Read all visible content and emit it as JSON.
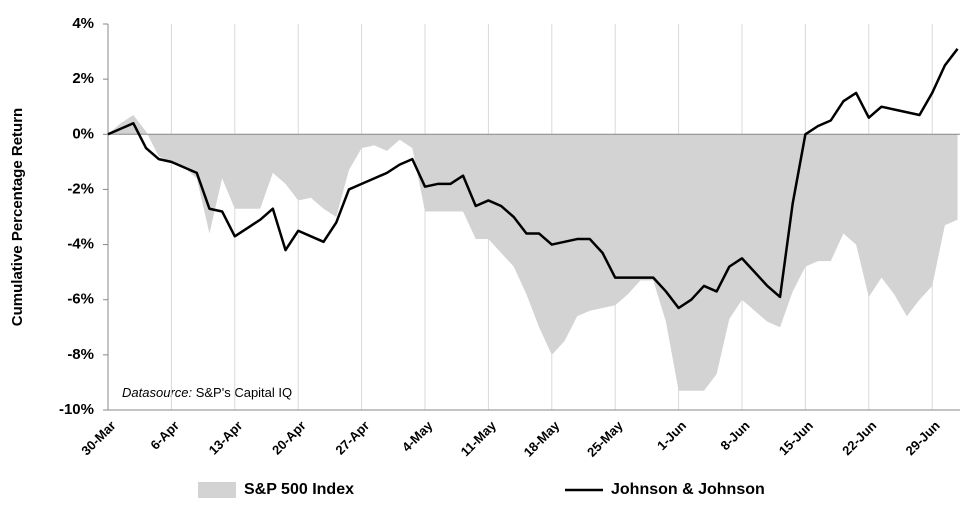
{
  "chart_data": {
    "type": "line",
    "y_label": "Cumulative Percentage Return",
    "annotation_label": "Datasource:",
    "annotation": "S&P's Capital IQ",
    "categories": [
      "30-Mar",
      null,
      null,
      null,
      null,
      "6-Apr",
      null,
      null,
      null,
      null,
      "13-Apr",
      null,
      null,
      null,
      null,
      "20-Apr",
      null,
      null,
      null,
      null,
      "27-Apr",
      null,
      null,
      null,
      null,
      "4-May",
      null,
      null,
      null,
      null,
      "11-May",
      null,
      null,
      null,
      null,
      "18-May",
      null,
      null,
      null,
      null,
      "25-May",
      null,
      null,
      null,
      null,
      "1-Jun",
      null,
      null,
      null,
      null,
      "8-Jun",
      null,
      null,
      null,
      null,
      "15-Jun",
      null,
      null,
      null,
      null,
      "22-Jun",
      null,
      null,
      null,
      null,
      "29-Jun",
      null,
      null
    ],
    "series": [
      {
        "name": "S&P 500 Index",
        "type": "area",
        "color": "#d3d3d3",
        "values": [
          0,
          0.4,
          0.7,
          0.1,
          -0.8,
          -1.0,
          -1.2,
          -1.6,
          -3.6,
          -1.6,
          -2.7,
          -2.7,
          -2.7,
          -1.4,
          -1.8,
          -2.4,
          -2.3,
          -2.7,
          -3.0,
          -1.3,
          -0.5,
          -0.4,
          -0.6,
          -0.2,
          -0.5,
          -2.8,
          -2.8,
          -2.8,
          -2.8,
          -3.8,
          -3.8,
          -4.3,
          -4.8,
          -5.8,
          -7.0,
          -8.0,
          -7.5,
          -6.6,
          -6.4,
          -6.3,
          -6.2,
          -5.8,
          -5.3,
          -5.3,
          -6.8,
          -9.3,
          -9.3,
          -9.3,
          -8.7,
          -6.7,
          -6.0,
          -6.4,
          -6.8,
          -7.0,
          -5.7,
          -4.8,
          -4.6,
          -4.6,
          -3.6,
          -4.0,
          -5.9,
          -5.2,
          -5.8,
          -6.6,
          -6.0,
          -5.5,
          -3.3,
          -3.1
        ]
      },
      {
        "name": "Johnson & Johnson",
        "type": "line",
        "color": "#000000",
        "values": [
          0,
          0.2,
          0.4,
          -0.5,
          -0.9,
          -1.0,
          -1.2,
          -1.4,
          -2.7,
          -2.8,
          -3.7,
          -3.4,
          -3.1,
          -2.7,
          -4.2,
          -3.5,
          -3.7,
          -3.9,
          -3.2,
          -2.0,
          -1.8,
          -1.6,
          -1.4,
          -1.1,
          -0.9,
          -1.9,
          -1.8,
          -1.8,
          -1.5,
          -2.6,
          -2.4,
          -2.6,
          -3.0,
          -3.6,
          -3.6,
          -4.0,
          -3.9,
          -3.8,
          -3.8,
          -4.3,
          -5.2,
          -5.2,
          -5.2,
          -5.2,
          -5.7,
          -6.3,
          -6.0,
          -5.5,
          -5.7,
          -4.8,
          -4.5,
          -5.0,
          -5.5,
          -5.9,
          -2.5,
          0.0,
          0.3,
          0.5,
          1.2,
          1.5,
          0.6,
          1.0,
          0.9,
          0.8,
          0.7,
          1.5,
          2.5,
          3.1
        ]
      }
    ],
    "ylim": [
      -10,
      4
    ],
    "yticks": [
      {
        "value": -10,
        "label": "-10%"
      },
      {
        "value": -8,
        "label": "-8%"
      },
      {
        "value": -6,
        "label": "-6%"
      },
      {
        "value": -4,
        "label": "-4%"
      },
      {
        "value": -2,
        "label": "-2%"
      },
      {
        "value": 0,
        "label": "0%"
      },
      {
        "value": 2,
        "label": "2%"
      },
      {
        "value": 4,
        "label": "4%"
      }
    ],
    "grid": true,
    "legend": "bottom"
  }
}
